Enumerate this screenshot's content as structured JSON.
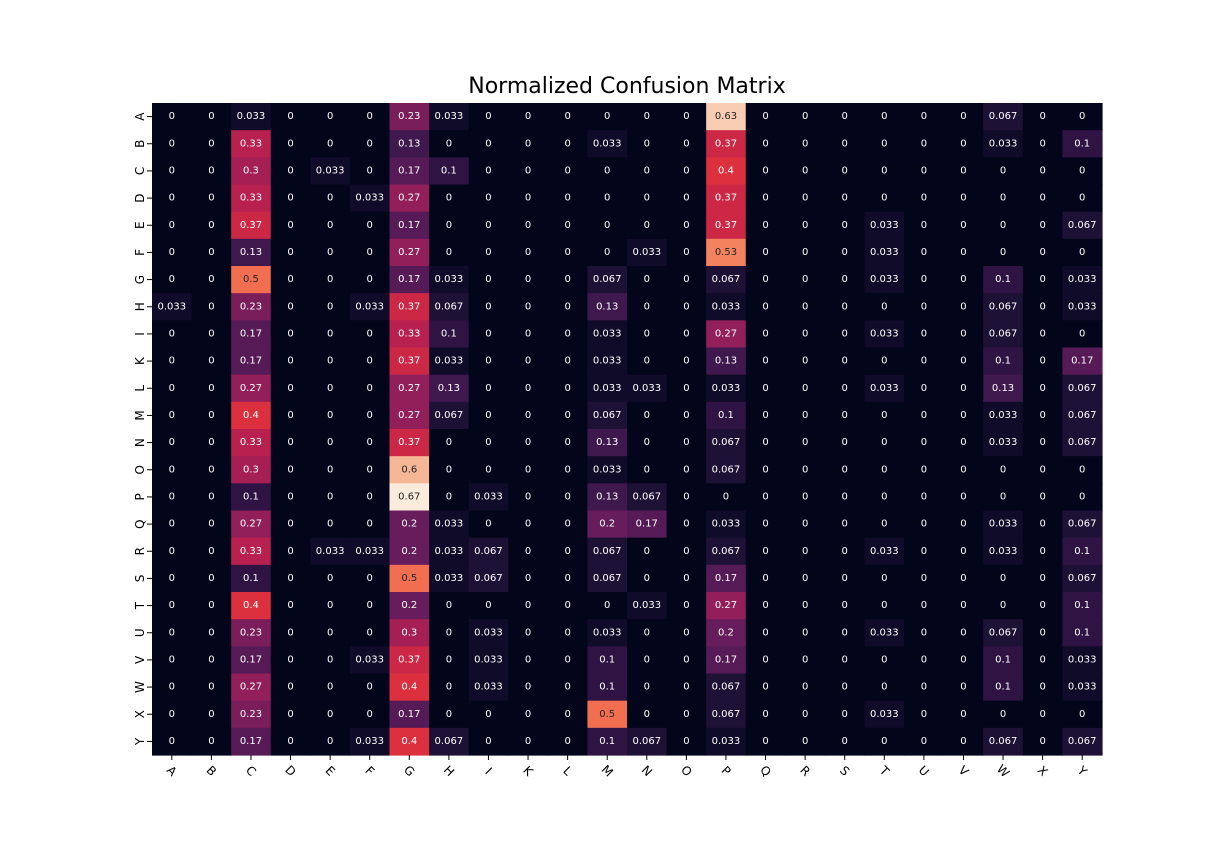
{
  "chart_data": {
    "type": "heatmap",
    "title": "Normalized Confusion Matrix",
    "xlabel": "",
    "ylabel": "",
    "colormap": "rocket",
    "value_range": [
      0,
      0.67
    ],
    "annotations": true,
    "colorbar": false,
    "x_categories": [
      "A",
      "B",
      "C",
      "D",
      "E",
      "F",
      "G",
      "H",
      "I",
      "K",
      "L",
      "M",
      "N",
      "O",
      "P",
      "Q",
      "R",
      "S",
      "T",
      "U",
      "V",
      "W",
      "X",
      "Y"
    ],
    "y_categories": [
      "A",
      "B",
      "C",
      "D",
      "E",
      "F",
      "G",
      "H",
      "I",
      "K",
      "L",
      "M",
      "N",
      "O",
      "P",
      "Q",
      "R",
      "S",
      "T",
      "U",
      "V",
      "W",
      "X",
      "Y"
    ],
    "values": [
      [
        "0",
        "0",
        "0.033",
        "0",
        "0",
        "0",
        "0.23",
        "0.033",
        "0",
        "0",
        "0",
        "0",
        "0",
        "0",
        "0.63",
        "0",
        "0",
        "0",
        "0",
        "0",
        "0",
        "0.067",
        "0",
        "0"
      ],
      [
        "0",
        "0",
        "0.33",
        "0",
        "0",
        "0",
        "0.13",
        "0",
        "0",
        "0",
        "0",
        "0.033",
        "0",
        "0",
        "0.37",
        "0",
        "0",
        "0",
        "0",
        "0",
        "0",
        "0.033",
        "0",
        "0.1"
      ],
      [
        "0",
        "0",
        "0.3",
        "0",
        "0.033",
        "0",
        "0.17",
        "0.1",
        "0",
        "0",
        "0",
        "0",
        "0",
        "0",
        "0.4",
        "0",
        "0",
        "0",
        "0",
        "0",
        "0",
        "0",
        "0",
        "0"
      ],
      [
        "0",
        "0",
        "0.33",
        "0",
        "0",
        "0.033",
        "0.27",
        "0",
        "0",
        "0",
        "0",
        "0",
        "0",
        "0",
        "0.37",
        "0",
        "0",
        "0",
        "0",
        "0",
        "0",
        "0",
        "0",
        "0"
      ],
      [
        "0",
        "0",
        "0.37",
        "0",
        "0",
        "0",
        "0.17",
        "0",
        "0",
        "0",
        "0",
        "0",
        "0",
        "0",
        "0.37",
        "0",
        "0",
        "0",
        "0.033",
        "0",
        "0",
        "0",
        "0",
        "0.067"
      ],
      [
        "0",
        "0",
        "0.13",
        "0",
        "0",
        "0",
        "0.27",
        "0",
        "0",
        "0",
        "0",
        "0",
        "0.033",
        "0",
        "0.53",
        "0",
        "0",
        "0",
        "0.033",
        "0",
        "0",
        "0",
        "0",
        "0"
      ],
      [
        "0",
        "0",
        "0.5",
        "0",
        "0",
        "0",
        "0.17",
        "0.033",
        "0",
        "0",
        "0",
        "0.067",
        "0",
        "0",
        "0.067",
        "0",
        "0",
        "0",
        "0.033",
        "0",
        "0",
        "0.1",
        "0",
        "0.033"
      ],
      [
        "0.033",
        "0",
        "0.23",
        "0",
        "0",
        "0.033",
        "0.37",
        "0.067",
        "0",
        "0",
        "0",
        "0.13",
        "0",
        "0",
        "0.033",
        "0",
        "0",
        "0",
        "0",
        "0",
        "0",
        "0.067",
        "0",
        "0.033"
      ],
      [
        "0",
        "0",
        "0.17",
        "0",
        "0",
        "0",
        "0.33",
        "0.1",
        "0",
        "0",
        "0",
        "0.033",
        "0",
        "0",
        "0.27",
        "0",
        "0",
        "0",
        "0.033",
        "0",
        "0",
        "0.067",
        "0",
        "0"
      ],
      [
        "0",
        "0",
        "0.17",
        "0",
        "0",
        "0",
        "0.37",
        "0.033",
        "0",
        "0",
        "0",
        "0.033",
        "0",
        "0",
        "0.13",
        "0",
        "0",
        "0",
        "0",
        "0",
        "0",
        "0.1",
        "0",
        "0.17"
      ],
      [
        "0",
        "0",
        "0.27",
        "0",
        "0",
        "0",
        "0.27",
        "0.13",
        "0",
        "0",
        "0",
        "0.033",
        "0.033",
        "0",
        "0.033",
        "0",
        "0",
        "0",
        "0.033",
        "0",
        "0",
        "0.13",
        "0",
        "0.067"
      ],
      [
        "0",
        "0",
        "0.4",
        "0",
        "0",
        "0",
        "0.27",
        "0.067",
        "0",
        "0",
        "0",
        "0.067",
        "0",
        "0",
        "0.1",
        "0",
        "0",
        "0",
        "0",
        "0",
        "0",
        "0.033",
        "0",
        "0.067"
      ],
      [
        "0",
        "0",
        "0.33",
        "0",
        "0",
        "0",
        "0.37",
        "0",
        "0",
        "0",
        "0",
        "0.13",
        "0",
        "0",
        "0.067",
        "0",
        "0",
        "0",
        "0",
        "0",
        "0",
        "0.033",
        "0",
        "0.067"
      ],
      [
        "0",
        "0",
        "0.3",
        "0",
        "0",
        "0",
        "0.6",
        "0",
        "0",
        "0",
        "0",
        "0.033",
        "0",
        "0",
        "0.067",
        "0",
        "0",
        "0",
        "0",
        "0",
        "0",
        "0",
        "0",
        "0"
      ],
      [
        "0",
        "0",
        "0.1",
        "0",
        "0",
        "0",
        "0.67",
        "0",
        "0.033",
        "0",
        "0",
        "0.13",
        "0.067",
        "0",
        "0",
        "0",
        "0",
        "0",
        "0",
        "0",
        "0",
        "0",
        "0",
        "0"
      ],
      [
        "0",
        "0",
        "0.27",
        "0",
        "0",
        "0",
        "0.2",
        "0.033",
        "0",
        "0",
        "0",
        "0.2",
        "0.17",
        "0",
        "0.033",
        "0",
        "0",
        "0",
        "0",
        "0",
        "0",
        "0.033",
        "0",
        "0.067"
      ],
      [
        "0",
        "0",
        "0.33",
        "0",
        "0.033",
        "0.033",
        "0.2",
        "0.033",
        "0.067",
        "0",
        "0",
        "0.067",
        "0",
        "0",
        "0.067",
        "0",
        "0",
        "0",
        "0.033",
        "0",
        "0",
        "0.033",
        "0",
        "0.1"
      ],
      [
        "0",
        "0",
        "0.1",
        "0",
        "0",
        "0",
        "0.5",
        "0.033",
        "0.067",
        "0",
        "0",
        "0.067",
        "0",
        "0",
        "0.17",
        "0",
        "0",
        "0",
        "0",
        "0",
        "0",
        "0",
        "0",
        "0.067"
      ],
      [
        "0",
        "0",
        "0.4",
        "0",
        "0",
        "0",
        "0.2",
        "0",
        "0",
        "0",
        "0",
        "0",
        "0.033",
        "0",
        "0.27",
        "0",
        "0",
        "0",
        "0",
        "0",
        "0",
        "0",
        "0",
        "0.1"
      ],
      [
        "0",
        "0",
        "0.23",
        "0",
        "0",
        "0",
        "0.3",
        "0",
        "0.033",
        "0",
        "0",
        "0.033",
        "0",
        "0",
        "0.2",
        "0",
        "0",
        "0",
        "0.033",
        "0",
        "0",
        "0.067",
        "0",
        "0.1"
      ],
      [
        "0",
        "0",
        "0.17",
        "0",
        "0",
        "0.033",
        "0.37",
        "0",
        "0.033",
        "0",
        "0",
        "0.1",
        "0",
        "0",
        "0.17",
        "0",
        "0",
        "0",
        "0",
        "0",
        "0",
        "0.1",
        "0",
        "0.033"
      ],
      [
        "0",
        "0",
        "0.27",
        "0",
        "0",
        "0",
        "0.4",
        "0",
        "0.033",
        "0",
        "0",
        "0.1",
        "0",
        "0",
        "0.067",
        "0",
        "0",
        "0",
        "0",
        "0",
        "0",
        "0.1",
        "0",
        "0.033"
      ],
      [
        "0",
        "0",
        "0.23",
        "0",
        "0",
        "0",
        "0.17",
        "0",
        "0",
        "0",
        "0",
        "0.5",
        "0",
        "0",
        "0.067",
        "0",
        "0",
        "0",
        "0.033",
        "0",
        "0",
        "0",
        "0",
        "0"
      ],
      [
        "0",
        "0",
        "0.17",
        "0",
        "0",
        "0.033",
        "0.4",
        "0.067",
        "0",
        "0",
        "0",
        "0.1",
        "0.067",
        "0",
        "0.033",
        "0",
        "0",
        "0",
        "0",
        "0",
        "0",
        "0.067",
        "0",
        "0.067"
      ]
    ]
  }
}
